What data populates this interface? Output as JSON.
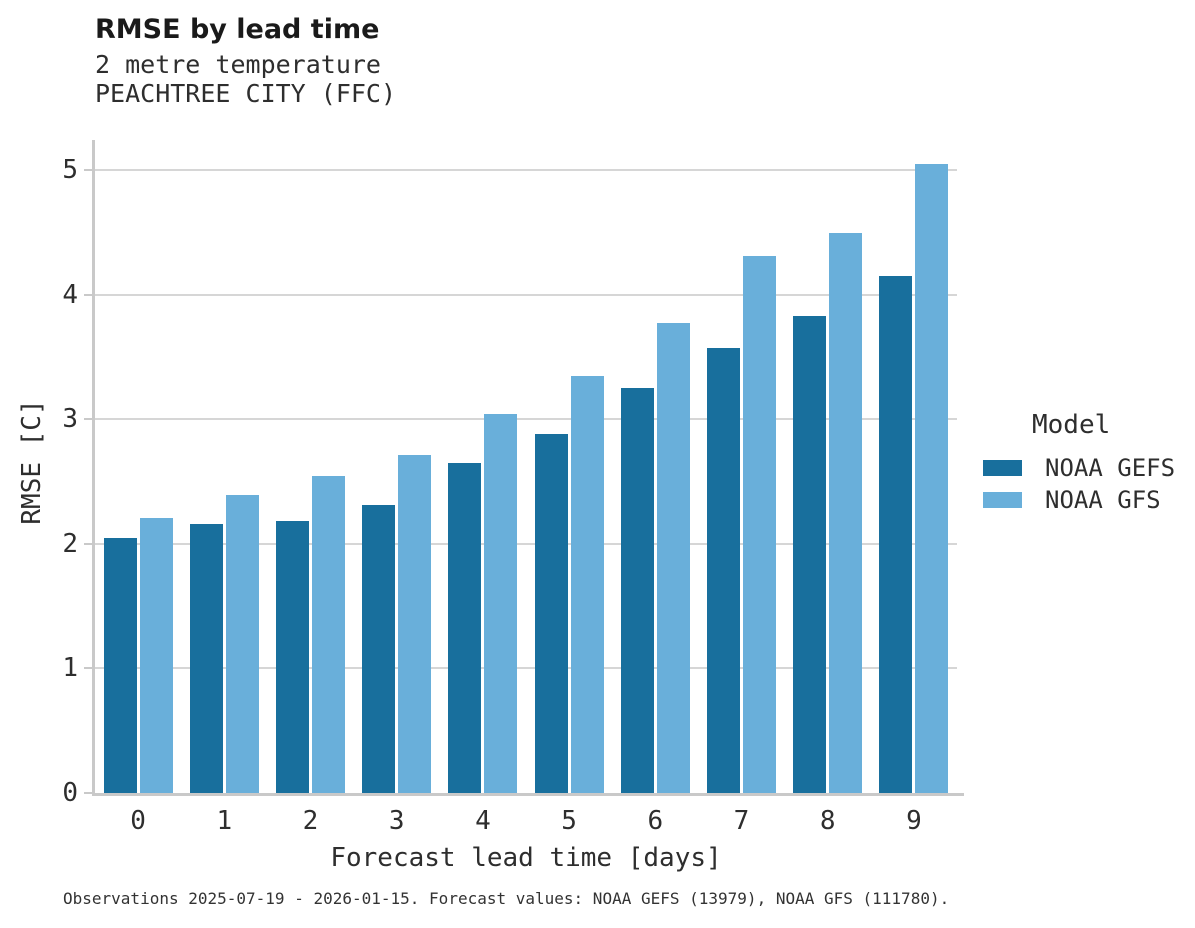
{
  "header": {
    "title": "RMSE by lead time",
    "subtitle1": "2 metre temperature",
    "subtitle2": "PEACHTREE CITY (FFC)"
  },
  "legend": {
    "title": "Model",
    "entries": [
      "NOAA GEFS",
      "NOAA GFS"
    ]
  },
  "caption": "Observations 2025-07-19 - 2026-01-15. Forecast values: NOAA GEFS (13979), NOAA GFS (111780).",
  "colors": {
    "gefs_dark_blue": "#186f9d",
    "gfs_light_blue": "#69afda",
    "gridline_gray": "#d6d6d6",
    "axis_gray": "#c9c9c9"
  },
  "chart_data": {
    "type": "bar",
    "title": "RMSE by lead time",
    "subtitle": [
      "2 metre temperature",
      "PEACHTREE CITY (FFC)"
    ],
    "categories": [
      "0",
      "1",
      "2",
      "3",
      "4",
      "5",
      "6",
      "7",
      "8",
      "9"
    ],
    "series": [
      {
        "name": "NOAA GEFS",
        "color": "#186f9d",
        "values": [
          2.05,
          2.16,
          2.18,
          2.31,
          2.65,
          2.88,
          3.25,
          3.57,
          3.83,
          4.15
        ]
      },
      {
        "name": "NOAA GFS",
        "color": "#69afda",
        "values": [
          2.21,
          2.39,
          2.54,
          2.71,
          3.04,
          3.35,
          3.77,
          4.31,
          4.49,
          5.05
        ]
      }
    ],
    "xlabel": "Forecast lead time [days]",
    "ylabel": "RMSE [C]",
    "ylim": [
      0,
      5.24
    ],
    "yticks": [
      0,
      1,
      2,
      3,
      4,
      5
    ],
    "grid": "horizontal",
    "legend_position": "right",
    "legend_title": "Model"
  }
}
